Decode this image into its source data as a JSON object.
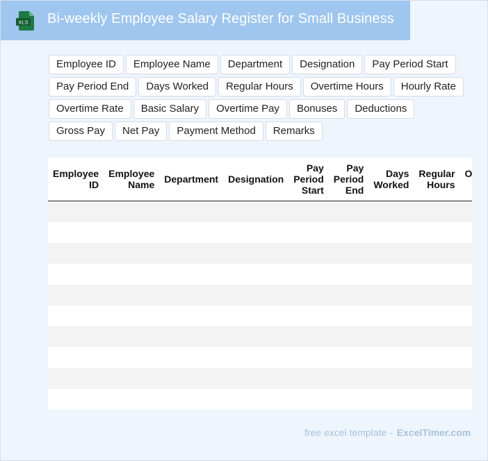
{
  "header": {
    "icon_text": "XLS",
    "title": "Bi-weekly Employee Salary Register for Small Business"
  },
  "fields": [
    "Employee ID",
    "Employee Name",
    "Department",
    "Designation",
    "Pay Period Start",
    "Pay Period End",
    "Days Worked",
    "Regular Hours",
    "Overtime Hours",
    "Hourly Rate",
    "Overtime Rate",
    "Basic Salary",
    "Overtime Pay",
    "Bonuses",
    "Deductions",
    "Gross Pay",
    "Net Pay",
    "Payment Method",
    "Remarks"
  ],
  "table": {
    "columns": [
      "Employee ID",
      "Employee Name",
      "Department",
      "Designation",
      "Pay Period Start",
      "Pay Period End",
      "Days Worked",
      "Regular Hours",
      "Overtime Hours",
      "Hourly Rate",
      "Overtime Rate",
      "Basic Salary",
      "Overtime Pay",
      "Bonuses",
      "Deductions",
      "Gross Pay",
      "Net Pay",
      "Payment Method",
      "Remarks"
    ],
    "row_count": 10
  },
  "footer": {
    "text": "free excel template -",
    "brand": "ExcelTimer.com"
  },
  "colors": {
    "header_bg": "#9fc6ee",
    "page_bg": "#eef5fd",
    "icon_green": "#1d7a45"
  }
}
